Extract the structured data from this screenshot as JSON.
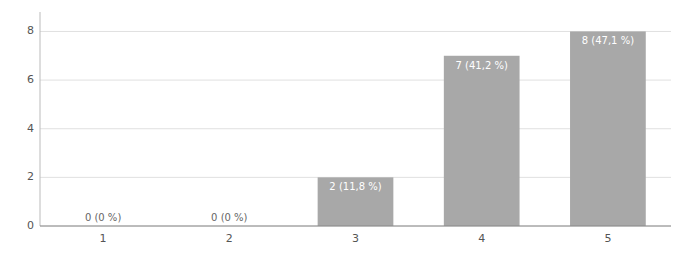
{
  "chart_data": {
    "type": "bar",
    "x": [
      1,
      2,
      3,
      4,
      5
    ],
    "values": [
      0,
      0,
      2,
      7,
      8
    ],
    "value_labels": [
      "0 (0 %)",
      "0 (0 %)",
      "2 (11,8 %)",
      "7 (41,2 %)",
      "8 (47,1 %)"
    ],
    "data_labels": true,
    "color": "#a8a8a8",
    "xlim": [
      0.5,
      5.5
    ],
    "xticks": [
      1,
      2,
      3,
      4,
      5
    ],
    "ylim": [
      0,
      8.8
    ],
    "yticks": [
      0,
      2,
      4,
      6,
      8
    ],
    "grid": true
  }
}
